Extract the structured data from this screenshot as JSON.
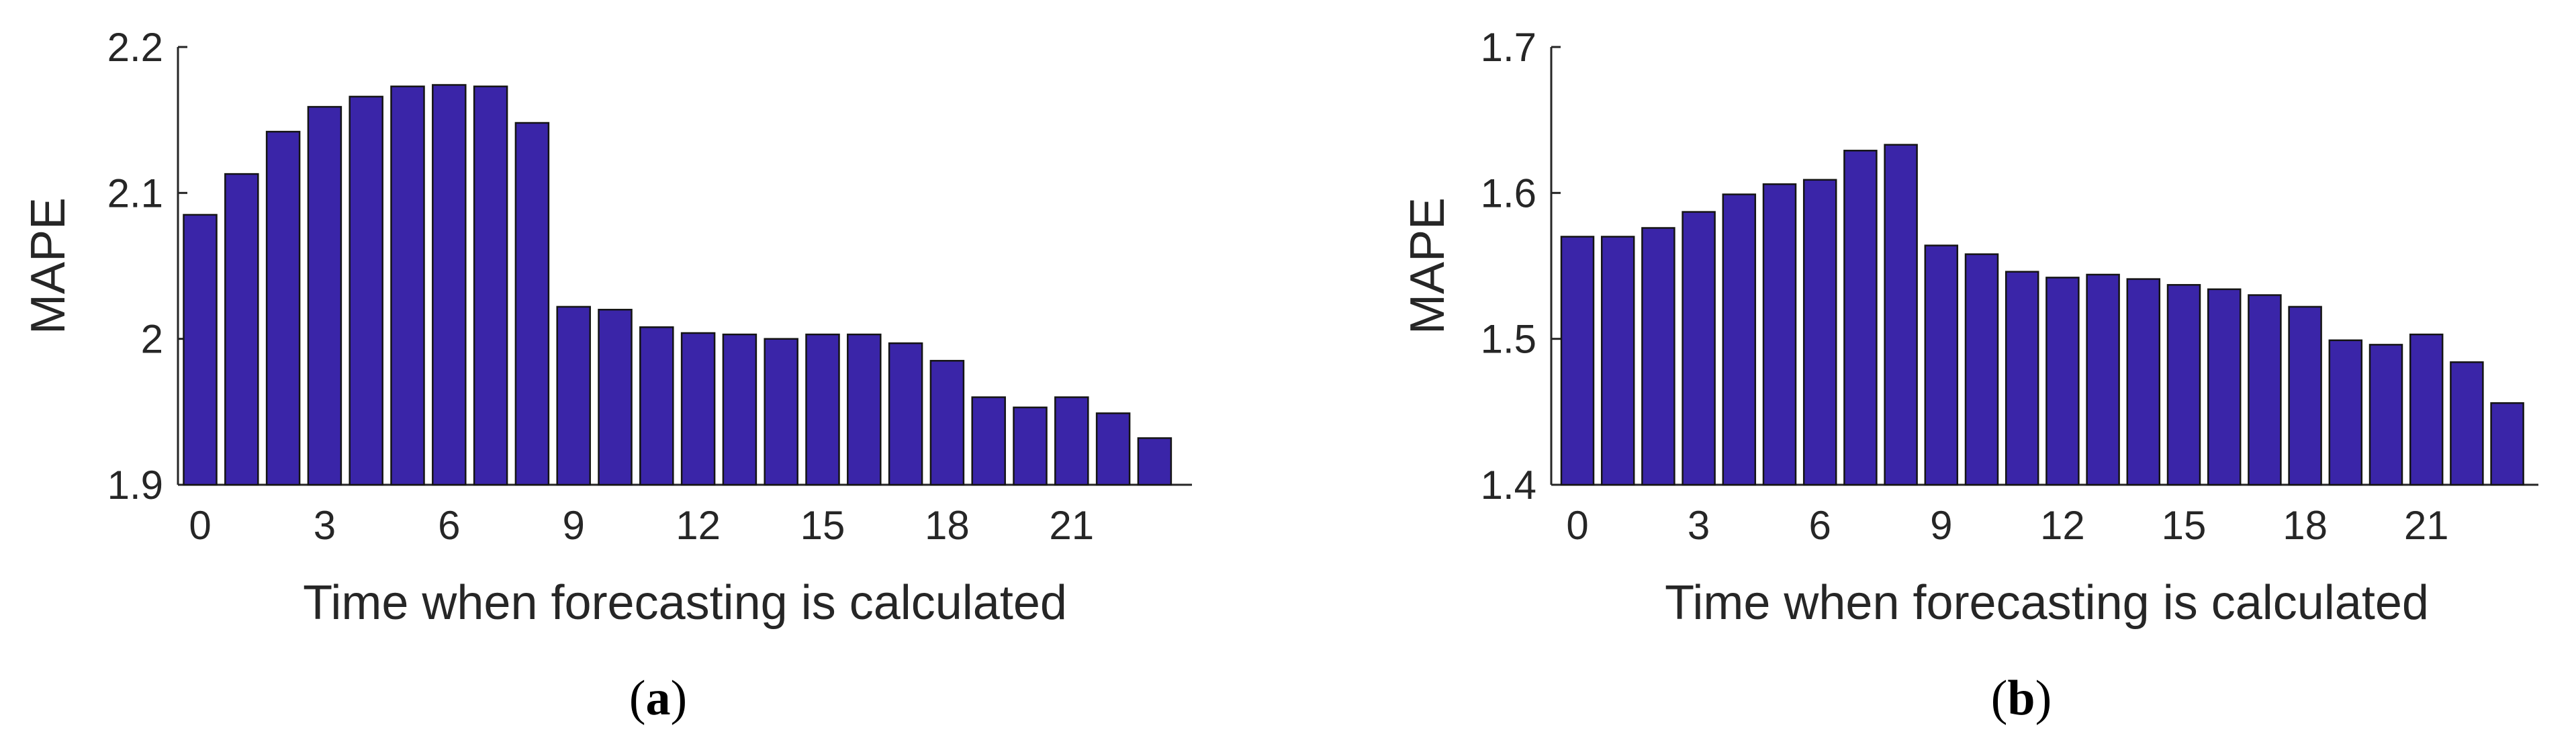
{
  "colors": {
    "bar": "#3a25a8",
    "bar_edge": "#141414",
    "axis": "#262626"
  },
  "chart_data": [
    {
      "type": "bar",
      "panel": "a",
      "title": "",
      "xlabel": "Time when forecasting is calculated",
      "ylabel": "MAPE",
      "ylim": [
        1.9,
        2.2
      ],
      "yticks": [
        1.9,
        2.0,
        2.1,
        2.2
      ],
      "ytick_labels": [
        "1.9",
        "2",
        "2.1",
        "2.2"
      ],
      "xticks": [
        0,
        3,
        6,
        9,
        12,
        15,
        18,
        21
      ],
      "xtick_labels": [
        "0",
        "3",
        "6",
        "9",
        "12",
        "15",
        "18",
        "21"
      ],
      "categories": [
        0,
        1,
        2,
        3,
        4,
        5,
        6,
        7,
        8,
        9,
        10,
        11,
        12,
        13,
        14,
        15,
        16,
        17,
        18,
        19,
        20,
        21,
        22,
        23
      ],
      "values": [
        2.085,
        2.113,
        2.142,
        2.159,
        2.166,
        2.173,
        2.174,
        2.173,
        2.148,
        2.022,
        2.02,
        2.008,
        2.004,
        2.003,
        2.0,
        2.003,
        2.003,
        1.997,
        1.985,
        1.96,
        1.953,
        1.96,
        1.949,
        1.932
      ]
    },
    {
      "type": "bar",
      "panel": "b",
      "title": "",
      "xlabel": "Time when forecasting is calculated",
      "ylabel": "MAPE",
      "ylim": [
        1.4,
        1.7
      ],
      "yticks": [
        1.4,
        1.5,
        1.6,
        1.7
      ],
      "ytick_labels": [
        "1.4",
        "1.5",
        "1.6",
        "1.7"
      ],
      "xticks": [
        0,
        3,
        6,
        9,
        12,
        15,
        18,
        21
      ],
      "xtick_labels": [
        "0",
        "3",
        "6",
        "9",
        "12",
        "15",
        "18",
        "21"
      ],
      "categories": [
        0,
        1,
        2,
        3,
        4,
        5,
        6,
        7,
        8,
        9,
        10,
        11,
        12,
        13,
        14,
        15,
        16,
        17,
        18,
        19,
        20,
        21,
        22,
        23
      ],
      "values": [
        1.57,
        1.57,
        1.576,
        1.587,
        1.599,
        1.606,
        1.609,
        1.629,
        1.633,
        1.564,
        1.558,
        1.546,
        1.542,
        1.544,
        1.541,
        1.537,
        1.534,
        1.53,
        1.522,
        1.499,
        1.496,
        1.503,
        1.484,
        1.456
      ]
    }
  ],
  "panel_labels": [
    {
      "open": "(",
      "letter": "a",
      "close": ")"
    },
    {
      "open": "(",
      "letter": "b",
      "close": ")"
    }
  ]
}
